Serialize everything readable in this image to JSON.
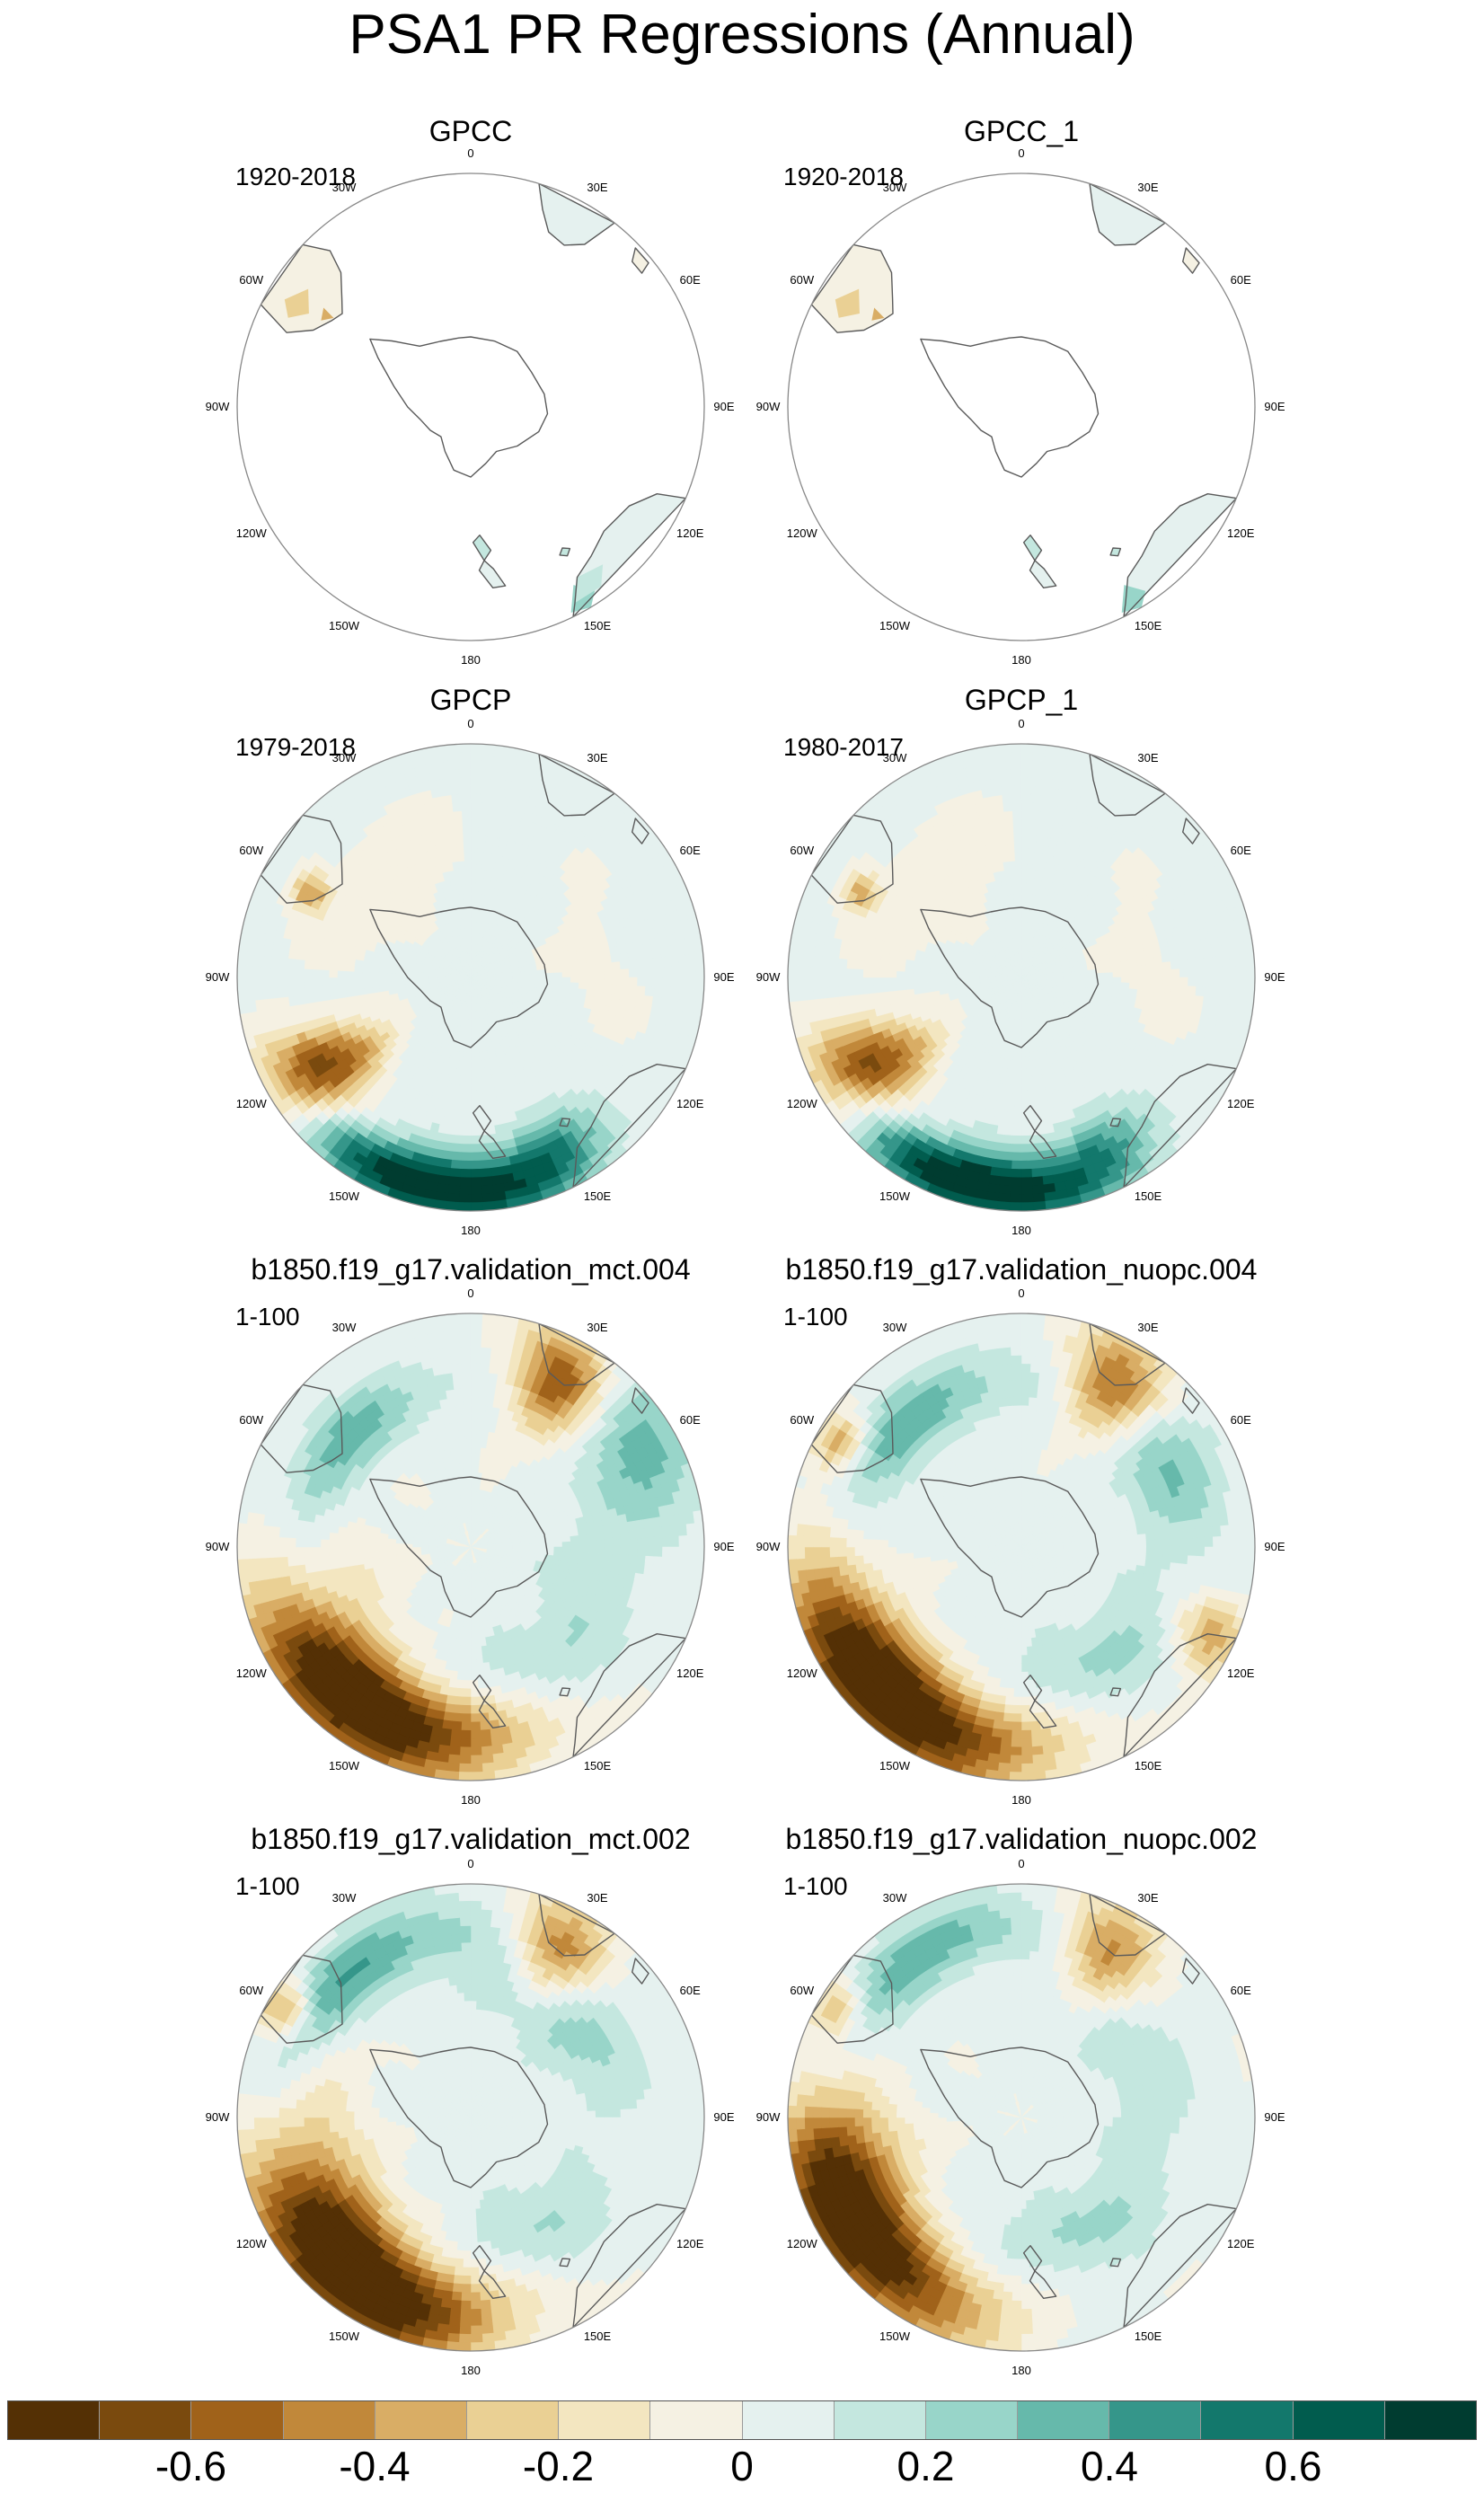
{
  "title": "PSA1 PR Regressions (Annual)",
  "panels": [
    {
      "title": "GPCC",
      "period": "1920-2018",
      "field": "gpcc"
    },
    {
      "title": "GPCC_1",
      "period": "1920-2018",
      "field": "gpcc1"
    },
    {
      "title": "GPCP",
      "period": "1979-2018",
      "field": "gpcp"
    },
    {
      "title": "GPCP_1",
      "period": "1980-2017",
      "field": "gpcp1"
    },
    {
      "title": "b1850.f19_g17.validation_mct.004",
      "period": "1-100",
      "field": "mct4"
    },
    {
      "title": "b1850.f19_g17.validation_nuopc.004",
      "period": "1-100",
      "field": "nuopc4"
    },
    {
      "title": "b1850.f19_g17.validation_mct.002",
      "period": "1-100",
      "field": "mct2"
    },
    {
      "title": "b1850.f19_g17.validation_nuopc.002",
      "period": "1-100",
      "field": "nuopc2"
    }
  ],
  "longitude_labels": [
    "0",
    "30E",
    "60E",
    "90E",
    "120E",
    "150E",
    "180",
    "150W",
    "120W",
    "90W",
    "60W",
    "30W"
  ],
  "colorbar": {
    "colors": [
      "#543005",
      "#7a4a0e",
      "#a0621a",
      "#c1883a",
      "#d9ad65",
      "#ead094",
      "#f3e6c0",
      "#f5f1e3",
      "#e5f1ef",
      "#c4e7df",
      "#98d5c9",
      "#66b9ab",
      "#35968a",
      "#13786c",
      "#015c4e",
      "#003c30"
    ],
    "tick_labels": [
      "-0.6",
      "-0.4",
      "-0.2",
      "0",
      "0.2",
      "0.4",
      "0.6"
    ],
    "tick_values": [
      -0.6,
      -0.4,
      -0.2,
      0,
      0.2,
      0.4,
      0.6
    ]
  },
  "map_style": {
    "land_outline": "#5a5a5a",
    "frame": "#888888",
    "no_data": "#ffffff"
  }
}
